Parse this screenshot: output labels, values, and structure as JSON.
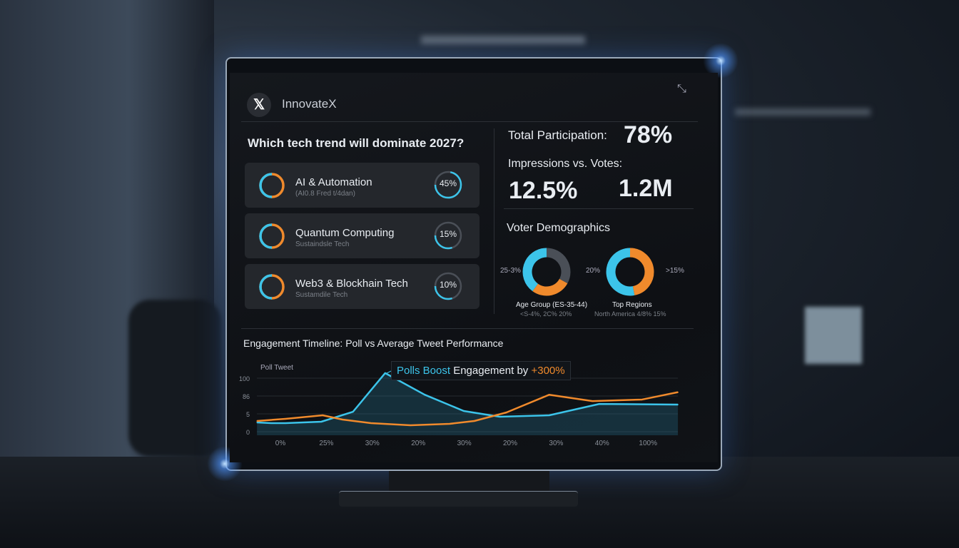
{
  "app": {
    "title": "InnovateX",
    "logo_icon": "x-logo-icon",
    "window_icon": "collapse-icon"
  },
  "poll": {
    "question": "Which tech trend will dominate 2027?",
    "options": [
      {
        "title": "AI & Automation",
        "subtitle": "(AI0.8 Fred t/4dan)",
        "percent_label": "45%",
        "percent": 45
      },
      {
        "title": "Quantum Computing",
        "subtitle": "Sustaindsle Tech",
        "percent_label": "15%",
        "percent": 15
      },
      {
        "title": "Web3 & Blockhain Tech",
        "subtitle": "Sustamdile Tech",
        "percent_label": "10%",
        "percent": 10
      }
    ]
  },
  "stats": {
    "participation_label": "Total Participation:",
    "participation_value": "78%",
    "impressions_label": "Impressions vs. Votes:",
    "impressions_value": "12.5%",
    "votes_value": "1.2M"
  },
  "demographics": {
    "title": "Voter Demographics",
    "age": {
      "side_label": "25-3%",
      "title": "Age Group (ES-35-44)",
      "detail": "<S-4%,  2C%   20%",
      "segments": [
        {
          "color": "#4a4f57",
          "fraction": 0.33
        },
        {
          "color": "#f08a2c",
          "fraction": 0.27
        },
        {
          "color": "#3cc4ea",
          "fraction": 0.4
        }
      ]
    },
    "regions": {
      "left_label": "20%",
      "right_label": ">15%",
      "title": "Top Regions",
      "detail": "North America  4/8%  15%",
      "segments": [
        {
          "color": "#f08a2c",
          "fraction": 0.47
        },
        {
          "color": "#3cc4ea",
          "fraction": 0.53
        }
      ]
    }
  },
  "colors": {
    "accent_blue": "#3cc4ea",
    "accent_orange": "#f08a2c"
  },
  "chart_data": {
    "type": "line",
    "title": "Engagement Timeline: Poll vs Average Tweet Performance",
    "legend": "Poll Tweet",
    "annotation": {
      "prefix": "Polls Boost",
      "middle": " Engagement by ",
      "value": "+300%"
    },
    "y_ticks": [
      "100",
      "86",
      "5",
      "0"
    ],
    "x_ticks": [
      "0%",
      "25%",
      "30%",
      "20%",
      "30%",
      "20%",
      "30%",
      "40%",
      "100%"
    ],
    "grid": true,
    "series": [
      {
        "color": "#3cc4ea",
        "fill": true,
        "points": [
          [
            -0.51,
            2.6
          ],
          [
            -0.2,
            2.4
          ],
          [
            0.11,
            2.4
          ],
          [
            0.89,
            2.8
          ],
          [
            1.58,
            14.7
          ],
          [
            2.28,
            104
          ],
          [
            3.14,
            87
          ],
          [
            3.99,
            18
          ],
          [
            4.77,
            4.2
          ],
          [
            5.85,
            4.6
          ],
          [
            6.94,
            50
          ],
          [
            8.65,
            47
          ]
        ]
      },
      {
        "color": "#f08a2c",
        "fill": false,
        "points": [
          [
            -0.51,
            3
          ],
          [
            0.11,
            3.6
          ],
          [
            0.92,
            4.6
          ],
          [
            1.35,
            3.4
          ],
          [
            1.97,
            2.4
          ],
          [
            2.83,
            1.8
          ],
          [
            3.68,
            2.2
          ],
          [
            4.22,
            3
          ],
          [
            4.92,
            11.5
          ],
          [
            5.85,
            87
          ],
          [
            6.79,
            63
          ],
          [
            7.87,
            70
          ],
          [
            8.65,
            89
          ]
        ]
      }
    ]
  }
}
